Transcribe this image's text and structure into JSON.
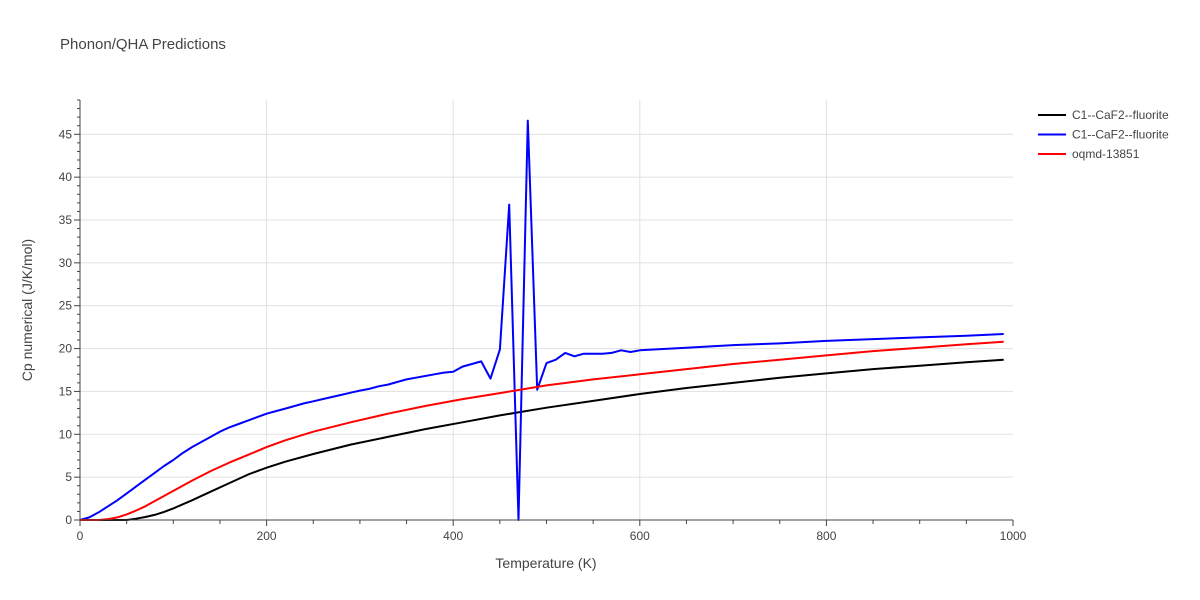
{
  "chart_data": {
    "type": "line",
    "title": "Phonon/QHA Predictions",
    "xlabel": "Temperature (K)",
    "ylabel": "Cp numerical (J/K/mol)",
    "xlim": [
      0,
      1000
    ],
    "ylim": [
      0,
      49
    ],
    "x_ticks": [
      0,
      200,
      400,
      600,
      800,
      1000
    ],
    "y_ticks": [
      0,
      5,
      10,
      15,
      20,
      25,
      30,
      35,
      40,
      45
    ],
    "grid": true,
    "legend_position": "top-right",
    "series": [
      {
        "name": "C1--CaF2--fluorite",
        "color": "#000000",
        "x": [
          0,
          50,
          60,
          70,
          80,
          90,
          100,
          120,
          140,
          160,
          180,
          200,
          220,
          250,
          290,
          330,
          370,
          410,
          450,
          500,
          550,
          600,
          650,
          700,
          750,
          800,
          850,
          900,
          950,
          990
        ],
        "y": [
          0,
          0,
          0.15,
          0.35,
          0.6,
          0.95,
          1.35,
          2.3,
          3.3,
          4.3,
          5.3,
          6.1,
          6.8,
          7.7,
          8.8,
          9.7,
          10.6,
          11.4,
          12.2,
          13.1,
          13.9,
          14.7,
          15.4,
          16.0,
          16.6,
          17.1,
          17.6,
          18.0,
          18.4,
          18.7
        ]
      },
      {
        "name": "C1--CaF2--fluorite",
        "color": "#0000ff",
        "x": [
          0,
          10,
          20,
          30,
          40,
          50,
          60,
          70,
          80,
          90,
          100,
          110,
          120,
          130,
          140,
          150,
          160,
          170,
          180,
          190,
          200,
          210,
          220,
          230,
          240,
          250,
          260,
          270,
          280,
          290,
          300,
          310,
          320,
          330,
          340,
          350,
          360,
          370,
          380,
          390,
          400,
          410,
          420,
          430,
          440,
          450,
          460,
          470,
          480,
          490,
          500,
          510,
          520,
          530,
          540,
          550,
          560,
          570,
          580,
          590,
          600,
          650,
          700,
          750,
          800,
          850,
          900,
          950,
          990
        ],
        "y": [
          0,
          0.3,
          0.9,
          1.6,
          2.3,
          3.1,
          3.9,
          4.7,
          5.5,
          6.3,
          7.0,
          7.8,
          8.5,
          9.1,
          9.7,
          10.3,
          10.8,
          11.2,
          11.6,
          12.0,
          12.4,
          12.7,
          13.0,
          13.3,
          13.6,
          13.85,
          14.1,
          14.35,
          14.6,
          14.85,
          15.1,
          15.3,
          15.6,
          15.8,
          16.1,
          16.4,
          16.6,
          16.8,
          17.0,
          17.2,
          17.3,
          17.9,
          18.2,
          18.5,
          16.5,
          19.9,
          36.8,
          0,
          46.6,
          15.2,
          18.3,
          18.7,
          19.5,
          19.1,
          19.4,
          19.4,
          19.4,
          19.5,
          19.8,
          19.6,
          19.8,
          20.1,
          20.4,
          20.6,
          20.9,
          21.1,
          21.3,
          21.5,
          21.7
        ]
      },
      {
        "name": "oqmd-13851",
        "color": "#ff0000",
        "x": [
          0,
          20,
          30,
          40,
          50,
          60,
          70,
          80,
          90,
          100,
          120,
          140,
          160,
          180,
          200,
          220,
          250,
          290,
          330,
          370,
          410,
          450,
          500,
          550,
          600,
          650,
          700,
          750,
          800,
          850,
          900,
          950,
          990
        ],
        "y": [
          0,
          0,
          0.1,
          0.3,
          0.65,
          1.1,
          1.6,
          2.2,
          2.8,
          3.4,
          4.6,
          5.7,
          6.7,
          7.6,
          8.5,
          9.3,
          10.3,
          11.4,
          12.4,
          13.3,
          14.1,
          14.8,
          15.7,
          16.4,
          17.0,
          17.6,
          18.2,
          18.7,
          19.2,
          19.7,
          20.1,
          20.5,
          20.8
        ]
      }
    ]
  }
}
